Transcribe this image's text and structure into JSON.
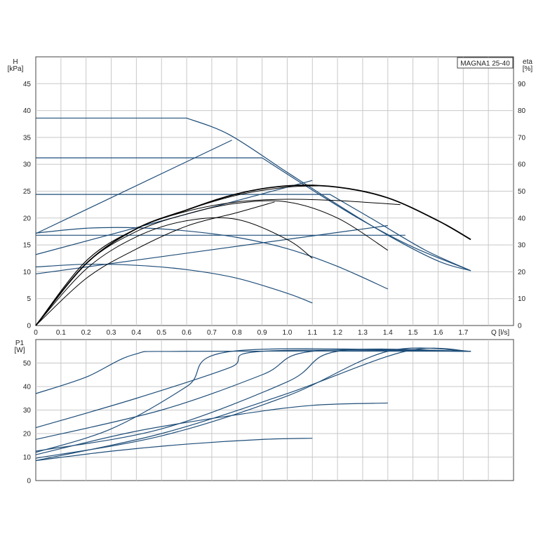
{
  "chart_data": [
    {
      "type": "line",
      "title": "",
      "model_label": "MAGNA1 25-40",
      "ylabel_main": "H",
      "ylabel_main_unit": "[kPa]",
      "ylabel_right": "eta",
      "ylabel_right_unit": "[%]",
      "xlabel": "Q [l/s]",
      "xlim": [
        0,
        1.9
      ],
      "ylim": [
        0,
        50
      ],
      "y2lim": [
        0,
        100
      ],
      "x_ticks": [
        "0",
        "0.1",
        "0.2",
        "0.3",
        "0.4",
        "0.5",
        "0.6",
        "0.7",
        "0.8",
        "0.9",
        "1.0",
        "1.1",
        "1.2",
        "1.3",
        "1.4",
        "1.5",
        "1.6",
        "1.7"
      ],
      "y_ticks": [
        "0",
        "5",
        "10",
        "15",
        "20",
        "25",
        "30",
        "35",
        "40",
        "45"
      ],
      "y2_ticks": [
        "0",
        "10",
        "20",
        "30",
        "40",
        "50",
        "60",
        "70",
        "80",
        "90"
      ],
      "grid": true,
      "colors": {
        "head": "#1f4e79",
        "eta": "#000000"
      },
      "head_curves": [
        {
          "x": [
            0,
            0.6,
            0.77,
            1.0,
            1.2,
            1.4,
            1.6,
            1.73
          ],
          "y": [
            38.6,
            38.6,
            35.5,
            28.5,
            22.5,
            16.8,
            12.0,
            10.2
          ]
        },
        {
          "x": [
            0,
            0.9,
            1.1,
            1.3,
            1.5,
            1.73
          ],
          "y": [
            31.2,
            31.2,
            25.2,
            19.5,
            14.6,
            10.2
          ]
        },
        {
          "x": [
            0,
            1.17,
            1.35,
            1.55,
            1.73
          ],
          "y": [
            24.4,
            24.4,
            19.5,
            14.0,
            10.2
          ]
        },
        {
          "x": [
            0,
            1.47
          ],
          "y": [
            16.8,
            16.8
          ]
        },
        {
          "x": [
            0,
            0.2,
            0.4,
            0.6,
            0.8,
            1.0,
            1.2,
            1.4
          ],
          "y": [
            17.2,
            18.1,
            18.2,
            17.6,
            16.4,
            14.3,
            11.0,
            6.8
          ]
        },
        {
          "x": [
            0,
            0.2,
            0.4,
            0.6,
            0.8,
            1.0,
            1.1
          ],
          "y": [
            10.9,
            11.4,
            11.2,
            10.4,
            8.8,
            6.0,
            4.2
          ]
        }
      ],
      "control_lines": [
        {
          "x": [
            0,
            0.78
          ],
          "y": [
            17.1,
            34.5
          ]
        },
        {
          "x": [
            0,
            1.1
          ],
          "y": [
            13.2,
            27.0
          ]
        },
        {
          "x": [
            0,
            1.4
          ],
          "y": [
            9.6,
            18.6
          ]
        }
      ],
      "eta_curves": [
        {
          "x": [
            0,
            0.2,
            0.4,
            0.6,
            0.8,
            1.0,
            1.2,
            1.4,
            1.6,
            1.73
          ],
          "eta": [
            0,
            23,
            36,
            43,
            49,
            52,
            51.5,
            47.5,
            39,
            32
          ]
        },
        {
          "x": [
            0,
            0.2,
            0.4,
            0.6,
            0.8,
            1.0,
            1.15
          ],
          "eta": [
            0,
            24,
            36,
            43,
            48.5,
            51.5,
            52
          ]
        },
        {
          "x": [
            0,
            0.2,
            0.4,
            0.6,
            0.8,
            1.0,
            1.2,
            1.45
          ],
          "eta": [
            0,
            24,
            36,
            42.5,
            46,
            47,
            46.5,
            45
          ]
        },
        {
          "x": [
            0,
            0.2,
            0.4,
            0.6,
            0.8,
            1.0,
            1.2,
            1.4
          ],
          "eta": [
            0,
            23,
            35,
            41.5,
            45.5,
            46,
            40,
            28
          ]
        },
        {
          "x": [
            0,
            0.2,
            0.4,
            0.6,
            0.8,
            1.0,
            1.1
          ],
          "eta": [
            0,
            21,
            33,
            39,
            39.5,
            32,
            25
          ]
        },
        {
          "x": [
            0,
            0.2,
            0.39,
            0.6,
            0.8,
            0.95
          ],
          "eta": [
            0,
            17.5,
            28,
            37,
            42,
            46
          ]
        }
      ]
    },
    {
      "type": "line",
      "ylabel": "P1",
      "ylabel_unit": "[W]",
      "xlim": [
        0,
        1.9
      ],
      "ylim": [
        0,
        60
      ],
      "y_ticks": [
        "0",
        "10",
        "20",
        "30",
        "40",
        "50"
      ],
      "grid": true,
      "colors": {
        "power": "#1f4e79"
      },
      "power_curves": [
        {
          "x": [
            0,
            0.2,
            0.39,
            0.6,
            1.73
          ],
          "y": [
            37,
            44,
            53.6,
            55,
            55
          ]
        },
        {
          "x": [
            0,
            0.4,
            0.77,
            0.9,
            1.73
          ],
          "y": [
            22.5,
            35,
            48,
            55,
            55
          ]
        },
        {
          "x": [
            0,
            0.5,
            0.9,
            1.1,
            1.73
          ],
          "y": [
            17.5,
            30,
            45,
            55,
            55
          ]
        },
        {
          "x": [
            0,
            0.3,
            0.6,
            0.78,
            1.73
          ],
          "y": [
            12,
            22,
            40,
            55,
            55
          ]
        },
        {
          "x": [
            0,
            0.5,
            1.0,
            1.2,
            1.73
          ],
          "y": [
            12.5,
            22,
            42,
            55,
            55
          ]
        },
        {
          "x": [
            0,
            0.5,
            1.0,
            1.4,
            1.73
          ],
          "y": [
            9.5,
            19,
            36,
            55,
            55
          ]
        },
        {
          "x": [
            0,
            0.5,
            1.0,
            1.47,
            1.73
          ],
          "y": [
            8.5,
            20,
            37,
            55,
            55
          ]
        },
        {
          "x": [
            0,
            0.4,
            0.8,
            1.1,
            1.4
          ],
          "y": [
            11,
            21,
            28,
            32,
            33
          ]
        },
        {
          "x": [
            0,
            0.3,
            0.6,
            0.9,
            1.1
          ],
          "y": [
            8.5,
            12.5,
            15.5,
            17.5,
            18
          ]
        }
      ]
    }
  ]
}
